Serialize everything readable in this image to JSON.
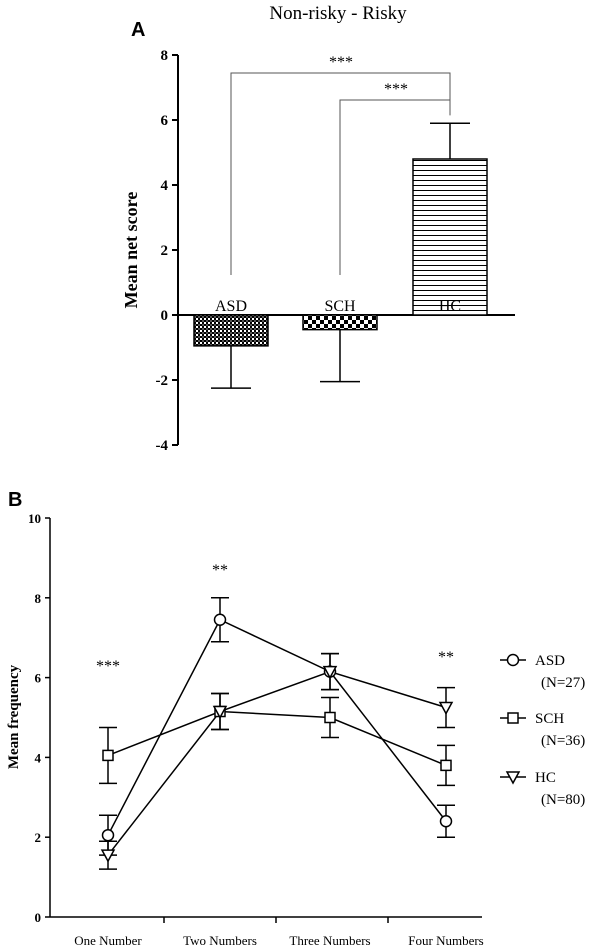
{
  "chart_data": [
    {
      "panel": "A",
      "type": "bar",
      "title": "Non-risky - Risky",
      "ylabel": "Mean net score",
      "xlabel": "",
      "ylim": [
        -4,
        8
      ],
      "yticks": [
        "-4",
        "-2",
        "0",
        "2",
        "4",
        "6",
        "8"
      ],
      "categories": [
        "ASD",
        "SCH",
        "HC"
      ],
      "values": [
        -0.95,
        -0.45,
        4.8
      ],
      "error": [
        1.3,
        1.6,
        1.1
      ],
      "patterns": [
        "crosshatch",
        "checker",
        "horizontal-lines"
      ],
      "significance": [
        {
          "from": "ASD",
          "to": "HC",
          "label": "***"
        },
        {
          "from": "SCH",
          "to": "HC",
          "label": "***"
        }
      ]
    },
    {
      "panel": "B",
      "type": "line",
      "ylabel": "Mean frequency",
      "xlabel": "",
      "ylim": [
        0,
        10
      ],
      "yticks": [
        "0",
        "2",
        "4",
        "6",
        "8",
        "10"
      ],
      "categories": [
        "One Number",
        "Two Numbers",
        "Three Numbers",
        "Four Numbers"
      ],
      "series": [
        {
          "name": "ASD",
          "n": "(N=27)",
          "marker": "circle",
          "values": [
            2.05,
            7.45,
            6.15,
            2.4
          ],
          "error": [
            0.5,
            0.55,
            0.45,
            0.4
          ]
        },
        {
          "name": "SCH",
          "n": "(N=36)",
          "marker": "square",
          "values": [
            4.05,
            5.15,
            5.0,
            3.8
          ],
          "error": [
            0.7,
            0.45,
            0.5,
            0.5
          ]
        },
        {
          "name": "HC",
          "n": "(N=80)",
          "marker": "triangle-down",
          "values": [
            1.55,
            5.15,
            6.15,
            5.25
          ],
          "error": [
            0.35,
            0.45,
            0.45,
            0.5
          ]
        }
      ],
      "significance": [
        "***",
        "**",
        "",
        "**"
      ]
    }
  ]
}
